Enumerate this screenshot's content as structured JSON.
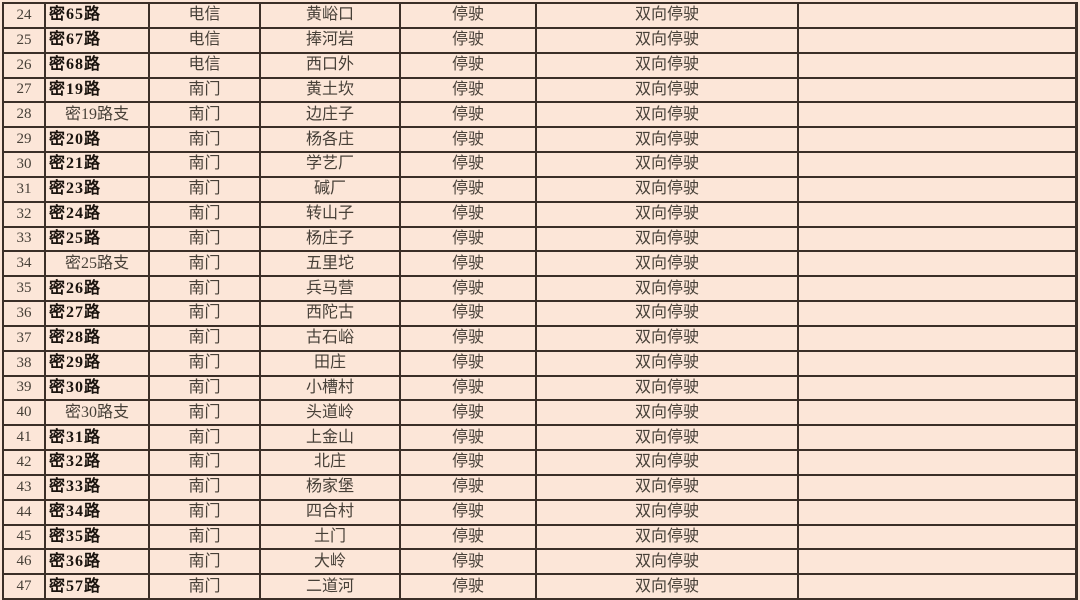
{
  "colors": {
    "background": "#fce6d8",
    "grid_line": "#3b2f28",
    "text": "#474038",
    "route_text": "#1a130e"
  },
  "table": {
    "rows": [
      {
        "no": "24",
        "route": "密65路",
        "branch": false,
        "origin": "电信",
        "terminal": "黄峪口",
        "status": "停驶",
        "scope": "双向停驶",
        "note": ""
      },
      {
        "no": "25",
        "route": "密67路",
        "branch": false,
        "origin": "电信",
        "terminal": "捧河岩",
        "status": "停驶",
        "scope": "双向停驶",
        "note": ""
      },
      {
        "no": "26",
        "route": "密68路",
        "branch": false,
        "origin": "电信",
        "terminal": "西口外",
        "status": "停驶",
        "scope": "双向停驶",
        "note": ""
      },
      {
        "no": "27",
        "route": "密19路",
        "branch": false,
        "origin": "南门",
        "terminal": "黄土坎",
        "status": "停驶",
        "scope": "双向停驶",
        "note": ""
      },
      {
        "no": "28",
        "route": "密19路支",
        "branch": true,
        "origin": "南门",
        "terminal": "边庄子",
        "status": "停驶",
        "scope": "双向停驶",
        "note": ""
      },
      {
        "no": "29",
        "route": "密20路",
        "branch": false,
        "origin": "南门",
        "terminal": "杨各庄",
        "status": "停驶",
        "scope": "双向停驶",
        "note": ""
      },
      {
        "no": "30",
        "route": "密21路",
        "branch": false,
        "origin": "南门",
        "terminal": "学艺厂",
        "status": "停驶",
        "scope": "双向停驶",
        "note": ""
      },
      {
        "no": "31",
        "route": "密23路",
        "branch": false,
        "origin": "南门",
        "terminal": "碱厂",
        "status": "停驶",
        "scope": "双向停驶",
        "note": ""
      },
      {
        "no": "32",
        "route": "密24路",
        "branch": false,
        "origin": "南门",
        "terminal": "转山子",
        "status": "停驶",
        "scope": "双向停驶",
        "note": ""
      },
      {
        "no": "33",
        "route": "密25路",
        "branch": false,
        "origin": "南门",
        "terminal": "杨庄子",
        "status": "停驶",
        "scope": "双向停驶",
        "note": ""
      },
      {
        "no": "34",
        "route": "密25路支",
        "branch": true,
        "origin": "南门",
        "terminal": "五里坨",
        "status": "停驶",
        "scope": "双向停驶",
        "note": ""
      },
      {
        "no": "35",
        "route": "密26路",
        "branch": false,
        "origin": "南门",
        "terminal": "兵马营",
        "status": "停驶",
        "scope": "双向停驶",
        "note": ""
      },
      {
        "no": "36",
        "route": "密27路",
        "branch": false,
        "origin": "南门",
        "terminal": "西陀古",
        "status": "停驶",
        "scope": "双向停驶",
        "note": ""
      },
      {
        "no": "37",
        "route": "密28路",
        "branch": false,
        "origin": "南门",
        "terminal": "古石峪",
        "status": "停驶",
        "scope": "双向停驶",
        "note": ""
      },
      {
        "no": "38",
        "route": "密29路",
        "branch": false,
        "origin": "南门",
        "terminal": "田庄",
        "status": "停驶",
        "scope": "双向停驶",
        "note": ""
      },
      {
        "no": "39",
        "route": "密30路",
        "branch": false,
        "origin": "南门",
        "terminal": "小槽村",
        "status": "停驶",
        "scope": "双向停驶",
        "note": ""
      },
      {
        "no": "40",
        "route": "密30路支",
        "branch": true,
        "origin": "南门",
        "terminal": "头道岭",
        "status": "停驶",
        "scope": "双向停驶",
        "note": ""
      },
      {
        "no": "41",
        "route": "密31路",
        "branch": false,
        "origin": "南门",
        "terminal": "上金山",
        "status": "停驶",
        "scope": "双向停驶",
        "note": ""
      },
      {
        "no": "42",
        "route": "密32路",
        "branch": false,
        "origin": "南门",
        "terminal": "北庄",
        "status": "停驶",
        "scope": "双向停驶",
        "note": ""
      },
      {
        "no": "43",
        "route": "密33路",
        "branch": false,
        "origin": "南门",
        "terminal": "杨家堡",
        "status": "停驶",
        "scope": "双向停驶",
        "note": ""
      },
      {
        "no": "44",
        "route": "密34路",
        "branch": false,
        "origin": "南门",
        "terminal": "四合村",
        "status": "停驶",
        "scope": "双向停驶",
        "note": ""
      },
      {
        "no": "45",
        "route": "密35路",
        "branch": false,
        "origin": "南门",
        "terminal": "土门",
        "status": "停驶",
        "scope": "双向停驶",
        "note": ""
      },
      {
        "no": "46",
        "route": "密36路",
        "branch": false,
        "origin": "南门",
        "terminal": "大岭",
        "status": "停驶",
        "scope": "双向停驶",
        "note": ""
      },
      {
        "no": "47",
        "route": "密57路",
        "branch": false,
        "origin": "南门",
        "terminal": "二道河",
        "status": "停驶",
        "scope": "双向停驶",
        "note": ""
      }
    ]
  }
}
